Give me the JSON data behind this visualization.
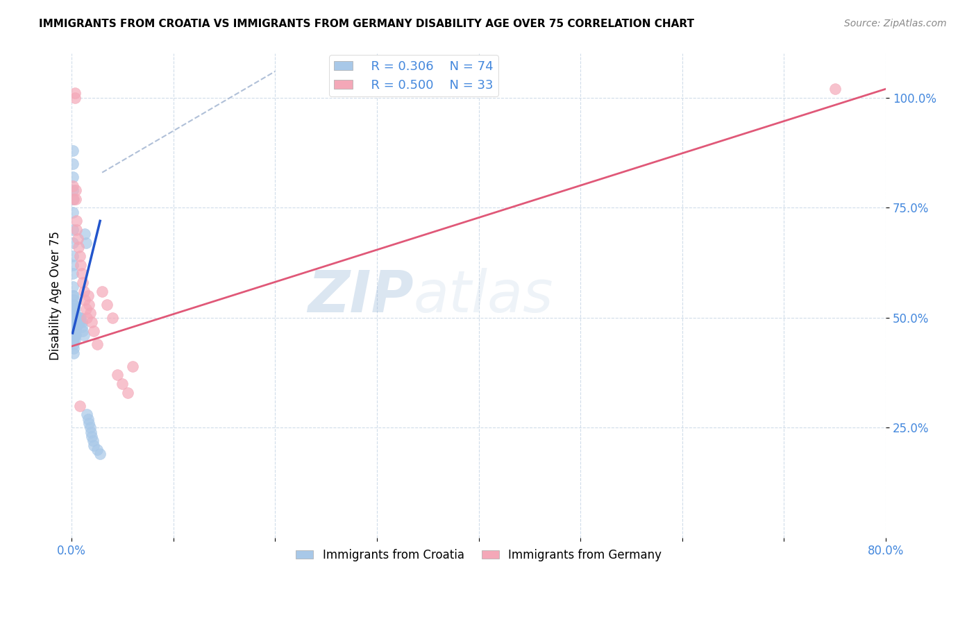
{
  "title": "IMMIGRANTS FROM CROATIA VS IMMIGRANTS FROM GERMANY DISABILITY AGE OVER 75 CORRELATION CHART",
  "source": "Source: ZipAtlas.com",
  "ylabel": "Disability Age Over 75",
  "xlim": [
    0.0,
    0.8
  ],
  "ylim": [
    0.0,
    1.1
  ],
  "xticks": [
    0.0,
    0.1,
    0.2,
    0.3,
    0.4,
    0.5,
    0.6,
    0.7,
    0.8
  ],
  "xticklabels": [
    "0.0%",
    "",
    "",
    "",
    "",
    "",
    "",
    "",
    "80.0%"
  ],
  "yticks": [
    0.25,
    0.5,
    0.75,
    1.0
  ],
  "yticklabels": [
    "25.0%",
    "50.0%",
    "75.0%",
    "100.0%"
  ],
  "croatia_color": "#a8c8e8",
  "germany_color": "#f4a8b8",
  "croatia_line_color": "#2255cc",
  "germany_line_color": "#e05878",
  "reference_line_color": "#b0c0d8",
  "r_croatia": "0.306",
  "n_croatia": "74",
  "r_germany": "0.500",
  "n_germany": "33",
  "legend_label_croatia": "Immigrants from Croatia",
  "legend_label_germany": "Immigrants from Germany",
  "watermark_zip": "ZIP",
  "watermark_atlas": "atlas",
  "tick_color": "#4488dd",
  "croatia_x": [
    0.001,
    0.001,
    0.001,
    0.001,
    0.001,
    0.001,
    0.001,
    0.001,
    0.001,
    0.001,
    0.001,
    0.001,
    0.001,
    0.001,
    0.001,
    0.001,
    0.001,
    0.001,
    0.001,
    0.001,
    0.001,
    0.002,
    0.002,
    0.002,
    0.002,
    0.002,
    0.002,
    0.002,
    0.002,
    0.002,
    0.002,
    0.002,
    0.002,
    0.002,
    0.002,
    0.003,
    0.003,
    0.003,
    0.003,
    0.003,
    0.003,
    0.003,
    0.003,
    0.004,
    0.004,
    0.004,
    0.004,
    0.004,
    0.005,
    0.005,
    0.005,
    0.006,
    0.006,
    0.007,
    0.007,
    0.008,
    0.008,
    0.009,
    0.01,
    0.01,
    0.011,
    0.012,
    0.013,
    0.014,
    0.015,
    0.016,
    0.017,
    0.018,
    0.019,
    0.02,
    0.021,
    0.022,
    0.025,
    0.028
  ],
  "croatia_y": [
    0.88,
    0.85,
    0.82,
    0.79,
    0.77,
    0.74,
    0.7,
    0.67,
    0.64,
    0.62,
    0.6,
    0.57,
    0.55,
    0.53,
    0.51,
    0.5,
    0.49,
    0.48,
    0.47,
    0.46,
    0.45,
    0.55,
    0.54,
    0.53,
    0.52,
    0.51,
    0.5,
    0.49,
    0.48,
    0.47,
    0.46,
    0.45,
    0.44,
    0.43,
    0.42,
    0.52,
    0.51,
    0.5,
    0.49,
    0.48,
    0.47,
    0.46,
    0.45,
    0.5,
    0.49,
    0.48,
    0.47,
    0.46,
    0.5,
    0.49,
    0.48,
    0.5,
    0.49,
    0.5,
    0.49,
    0.5,
    0.49,
    0.5,
    0.49,
    0.48,
    0.47,
    0.46,
    0.69,
    0.67,
    0.28,
    0.27,
    0.26,
    0.25,
    0.24,
    0.23,
    0.22,
    0.21,
    0.2,
    0.19
  ],
  "germany_x": [
    0.001,
    0.002,
    0.003,
    0.003,
    0.004,
    0.004,
    0.005,
    0.005,
    0.006,
    0.007,
    0.008,
    0.009,
    0.01,
    0.011,
    0.012,
    0.013,
    0.014,
    0.015,
    0.016,
    0.017,
    0.018,
    0.02,
    0.022,
    0.025,
    0.03,
    0.035,
    0.04,
    0.045,
    0.05,
    0.055,
    0.06,
    0.75,
    0.008
  ],
  "germany_y": [
    0.8,
    0.77,
    1.01,
    1.0,
    0.79,
    0.77,
    0.72,
    0.7,
    0.68,
    0.66,
    0.64,
    0.62,
    0.6,
    0.58,
    0.56,
    0.54,
    0.52,
    0.5,
    0.55,
    0.53,
    0.51,
    0.49,
    0.47,
    0.44,
    0.56,
    0.53,
    0.5,
    0.37,
    0.35,
    0.33,
    0.39,
    1.02,
    0.3
  ],
  "cro_line_x": [
    0.001,
    0.028
  ],
  "cro_line_y": [
    0.465,
    0.72
  ],
  "ger_line_x": [
    0.0,
    0.8
  ],
  "ger_line_y": [
    0.435,
    1.02
  ],
  "ref_line_x": [
    0.03,
    0.2
  ],
  "ref_line_y": [
    0.83,
    1.06
  ]
}
